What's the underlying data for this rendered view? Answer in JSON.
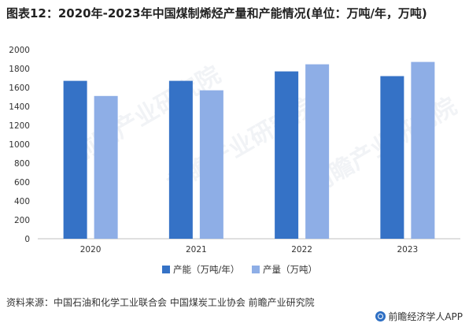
{
  "title": "图表12：2020年-2023年中国煤制烯烃产量和产能情况(单位：万吨/年，万吨)",
  "source": "资料来源：中国石油和化学工业联合会 中国煤炭工业协会 前瞻产业研究院",
  "brand": "前瞻经济学人APP",
  "watermark": "前瞻产业研究院",
  "colors": {
    "capacity": "#3572c6",
    "output": "#8eaee6"
  },
  "chart_data": {
    "type": "bar",
    "categories": [
      "2020",
      "2021",
      "2022",
      "2023"
    ],
    "series": [
      {
        "name": "产能（万吨/年）",
        "values": [
          1670,
          1670,
          1770,
          1720
        ]
      },
      {
        "name": "产量（万吨）",
        "values": [
          1510,
          1570,
          1845,
          1870
        ]
      }
    ],
    "ylim": [
      0,
      2000
    ],
    "yticks": [
      0,
      200,
      400,
      600,
      800,
      1000,
      1200,
      1400,
      1600,
      1800,
      2000
    ],
    "legend": "bottom",
    "grid": false
  }
}
